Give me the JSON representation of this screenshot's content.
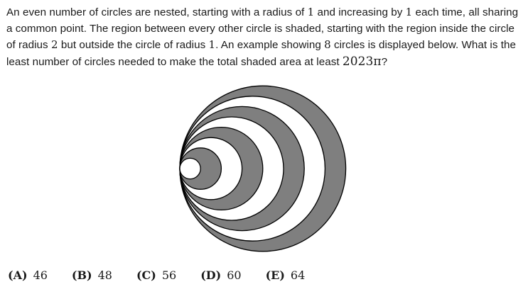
{
  "problem": {
    "seg1": "An even number of circles are nested, starting with a radius of ",
    "m1": "1",
    "seg2": " and increasing by ",
    "m2": "1",
    "seg3": " each time, all sharing a common point. The region between every other circle is shaded, starting with the region inside the circle of radius ",
    "m3": "2",
    "seg4": " but outside the circle of radius ",
    "m4": "1",
    "seg5": ". An example showing ",
    "m5": "8",
    "seg6": " circles is displayed below. What is the least number of circles needed to make the total shaded area at least ",
    "m6": "2023π",
    "seg7": "?"
  },
  "figure": {
    "circle_count": 8,
    "shade_color": "#7f7f7f",
    "stroke_color": "#000000"
  },
  "choices": [
    {
      "letter": "(A)",
      "value": "46"
    },
    {
      "letter": "(B)",
      "value": "48"
    },
    {
      "letter": "(C)",
      "value": "56"
    },
    {
      "letter": "(D)",
      "value": "60"
    },
    {
      "letter": "(E)",
      "value": "64"
    }
  ]
}
